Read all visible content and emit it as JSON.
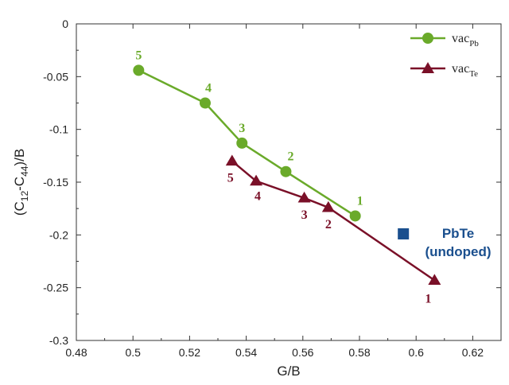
{
  "chart_data": {
    "type": "line",
    "xlabel": "G/B",
    "ylabel": {
      "main": "(C",
      "sub1": "12",
      "mid": "-C",
      "sub2": "44",
      "end": ")/B"
    },
    "xlim": [
      0.48,
      0.63
    ],
    "ylim": [
      -0.3,
      0
    ],
    "x_ticks": [
      0.48,
      0.5,
      0.52,
      0.54,
      0.56,
      0.58,
      0.6,
      0.62
    ],
    "x_tick_labels": [
      "0.48",
      "0.5",
      "0.52",
      "0.54",
      "0.56",
      "0.58",
      "0.6",
      "0.62"
    ],
    "y_ticks": [
      0,
      -0.05,
      -0.1,
      -0.15,
      -0.2,
      -0.25,
      -0.3
    ],
    "y_tick_labels": [
      "0",
      "-0.05",
      "-0.1",
      "-0.15",
      "-0.2",
      "-0.25",
      "-0.3"
    ],
    "grid": false,
    "legend_position": "top-right",
    "series": [
      {
        "name": "vac",
        "subscript": "Pb",
        "color": "#6aaa2a",
        "marker": "circle",
        "x": [
          0.502,
          0.5255,
          0.5385,
          0.554,
          0.5785
        ],
        "y": [
          -0.044,
          -0.075,
          -0.113,
          -0.14,
          -0.182
        ],
        "point_labels": [
          "5",
          "4",
          "3",
          "2",
          "1"
        ]
      },
      {
        "name": "vac",
        "subscript": "Te",
        "color": "#7a1028",
        "marker": "triangle",
        "x": [
          0.535,
          0.5435,
          0.5605,
          0.569,
          0.6065
        ],
        "y": [
          -0.13,
          -0.149,
          -0.165,
          -0.174,
          -0.243
        ],
        "point_labels": [
          "5",
          "4",
          "3",
          "2",
          "1"
        ]
      }
    ],
    "extra_points": [
      {
        "x": 0.5955,
        "y": -0.199,
        "marker": "square",
        "color": "#1a4f8e"
      }
    ],
    "annotations": [
      {
        "lines": [
          "PbTe",
          "(undoped)"
        ],
        "color": "#1a4f8e"
      }
    ]
  }
}
